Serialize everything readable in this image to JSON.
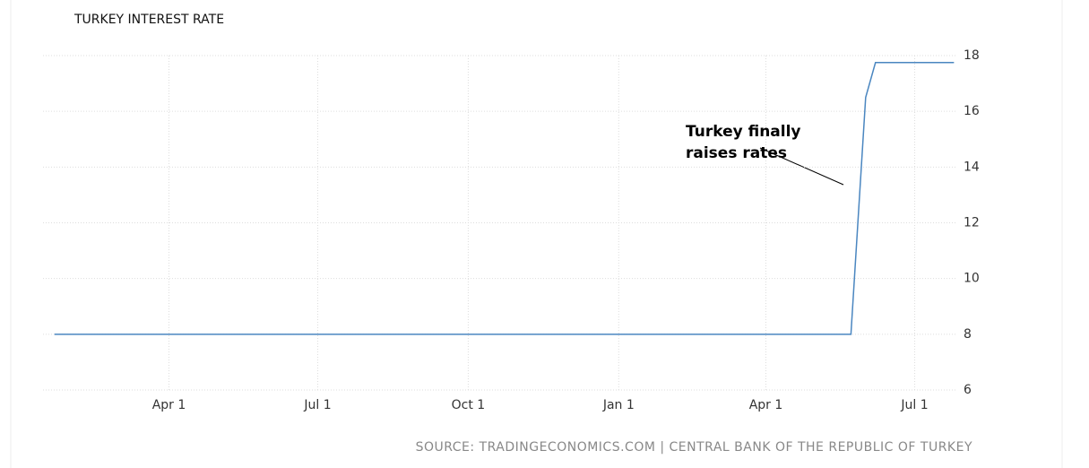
{
  "chart_data": {
    "type": "line",
    "title": "TURKEY INTEREST RATE",
    "x": [
      -70,
      417,
      426,
      432,
      480
    ],
    "series": [
      {
        "name": "Turkey Interest Rate",
        "color": "#4a86c0",
        "values": [
          8,
          8,
          16.5,
          17.75,
          17.75
        ]
      }
    ],
    "xlim": [
      -77,
      482
    ],
    "xticks": [
      {
        "value": 0,
        "label": "Apr 1"
      },
      {
        "value": 91,
        "label": "Jul 1"
      },
      {
        "value": 183,
        "label": "Oct 1"
      },
      {
        "value": 275,
        "label": "Jan 1"
      },
      {
        "value": 365,
        "label": "Apr 1"
      },
      {
        "value": 456,
        "label": "Jul 1"
      }
    ],
    "ylim": [
      6,
      18
    ],
    "yticks": [
      6,
      8,
      10,
      12,
      14,
      16,
      18
    ],
    "grid": true,
    "annotation": "Turkey finally raises rates",
    "source": "SOURCE: TRADINGECONOMICS.COM | CENTRAL BANK OF THE REPUBLIC OF TURKEY"
  }
}
